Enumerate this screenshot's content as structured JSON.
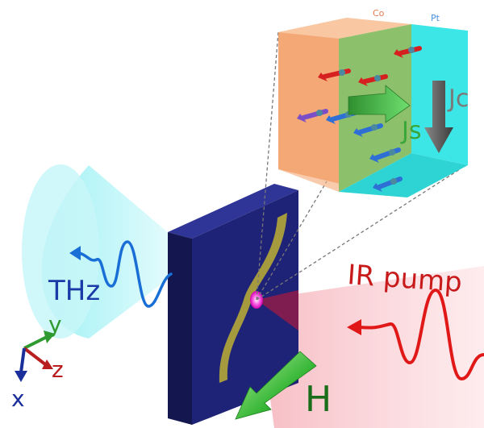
{
  "labels": {
    "co": "Co",
    "pt": "Pt",
    "jc": "Jc",
    "js": "Js",
    "thz": "THz",
    "ir_pump": "IR pump",
    "h": "H"
  },
  "axes": {
    "x": "x",
    "y": "y",
    "z": "z"
  },
  "colors": {
    "co_layer": "#f4a877",
    "pt_layer": "#3de6e6",
    "sample": "#1d1f6e",
    "thz": "#1a6fd6",
    "ir": "#e01818",
    "field": "#1a8c1a",
    "spin_current": "#3aa63a",
    "charge_current": "#6e6e6e"
  }
}
